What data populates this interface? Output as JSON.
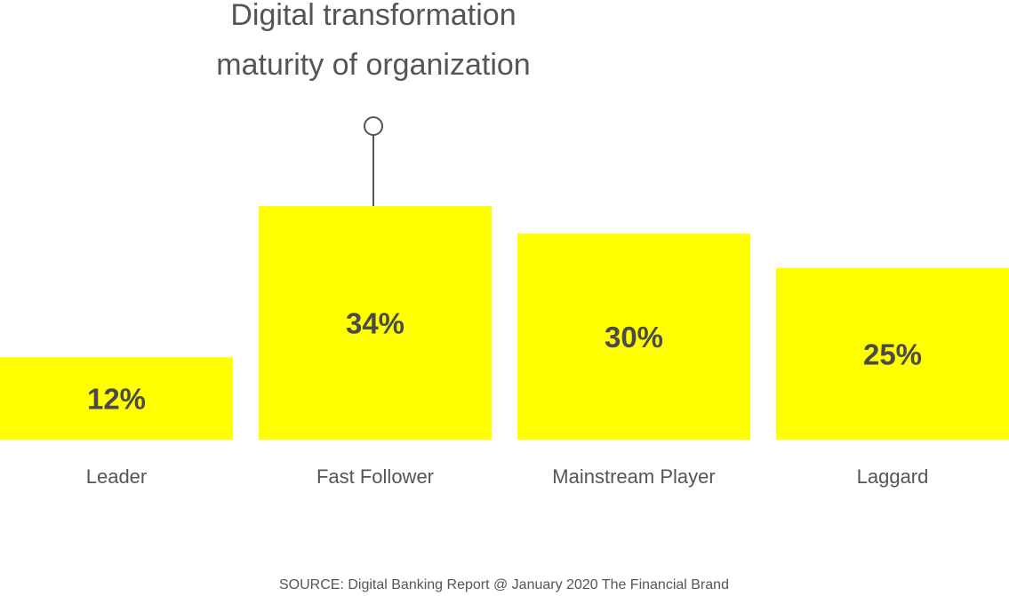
{
  "chart_data": {
    "type": "bar",
    "title_lines": [
      "Digital transformation",
      "maturity of organization"
    ],
    "categories": [
      "Leader",
      "Fast Follower",
      "Mainstream Player",
      "Laggard"
    ],
    "values": [
      12,
      34,
      30,
      25
    ],
    "data_labels": [
      "12%",
      "34%",
      "30%",
      "25%"
    ],
    "unit": "%",
    "ylim": [
      0,
      34
    ],
    "grid": false,
    "legend": "none",
    "source": "SOURCE: Digital Banking Report @ January 2020 The Financial Brand",
    "colors": {
      "bar": "#ffff00",
      "text": "#555555",
      "label": "#4a4a4a",
      "connector": "#555555"
    }
  }
}
